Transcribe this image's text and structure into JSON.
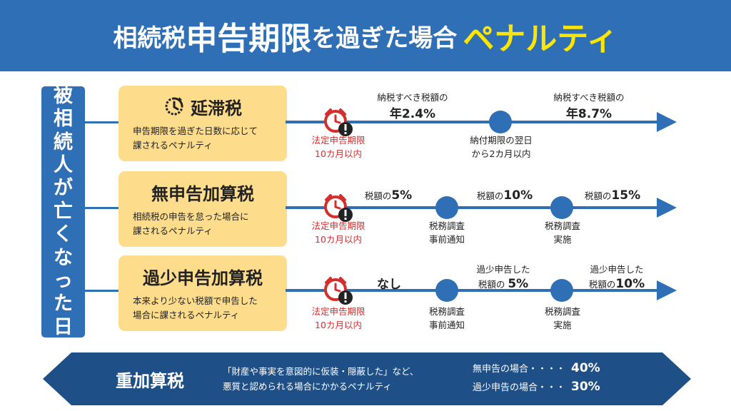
{
  "title": {
    "part1": "相続税",
    "part2": "申告期限",
    "part3": "を過ぎた場合",
    "part4": "ペナルティ"
  },
  "vertical_label": [
    "被",
    "相",
    "続",
    "人",
    "が",
    "亡",
    "く",
    "な",
    "っ",
    "た",
    "日"
  ],
  "rows": [
    {
      "name": "延滞税",
      "icon": "clock-arrow-icon",
      "desc_line1": "申告期限を過ぎた日数に応じて",
      "desc_line2": "課されるペナルティ",
      "deadline_line1": "法定申告期限",
      "deadline_line2": "10カ月以内",
      "rate1_small": "納税すべき税額の",
      "rate1_big": "年2.4%",
      "node1_line1": "納付期限の翌日",
      "node1_line2": "から2カ月以内",
      "rate2_small": "納税すべき税額の",
      "rate2_big": "年8.7%"
    },
    {
      "name": "無申告加算税",
      "desc_line1": "相続税の申告を怠った場合に",
      "desc_line2": "課されるペナルティ",
      "deadline_line1": "法定申告期限",
      "deadline_line2": "10カ月以内",
      "rate1_small": "税額の",
      "rate1_big": "5%",
      "node1_line1": "税務調査",
      "node1_line2": "事前通知",
      "rate2_small": "税額の",
      "rate2_big": "10%",
      "node2_line1": "税務調査",
      "node2_line2": "実施",
      "rate3_small": "税額の",
      "rate3_big": "15%"
    },
    {
      "name": "過少申告加算税",
      "desc_line1": "本来より少ない税額で申告した",
      "desc_line2": "場合に課されるペナルティ",
      "deadline_line1": "法定申告期限",
      "deadline_line2": "10カ月以内",
      "rate1_big": "なし",
      "node1_line1": "税務調査",
      "node1_line2": "事前通知",
      "rate2_line1": "過少申告した",
      "rate2_small": "税額の",
      "rate2_big": "5%",
      "node2_line1": "税務調査",
      "node2_line2": "実施",
      "rate3_line1": "過少申告した",
      "rate3_small": "税額の",
      "rate3_big": "10%"
    }
  ],
  "bottom": {
    "name": "重加算税",
    "desc_line1": "「財産や事実を意図的に仮装・隠蔽した」など、",
    "desc_line2": "悪質と認められる場合にかかるペナルティ",
    "case1_label": "無申告の場合・・・・",
    "case1_value": "40%",
    "case2_label": "過少申告の場合・・・",
    "case2_value": "30%"
  },
  "colors": {
    "primary_blue": "#2f6fb6",
    "dark_navy": "#1e4f86",
    "card_yellow": "#fddc8b",
    "title_yellow": "#ffe500",
    "alert_red": "#d32f2f"
  }
}
